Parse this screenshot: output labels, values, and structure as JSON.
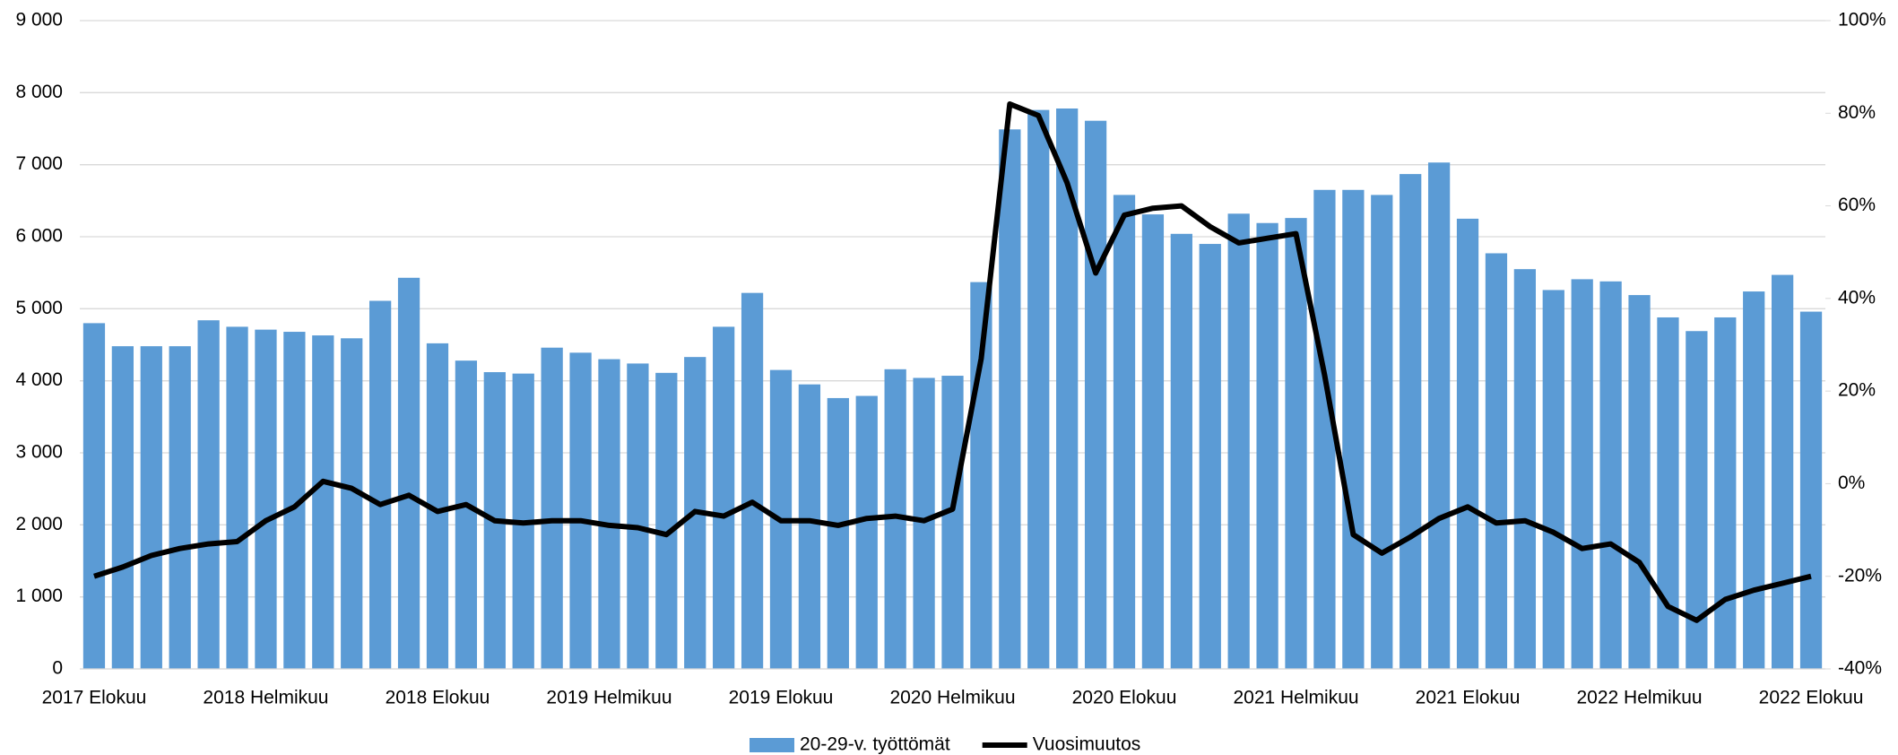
{
  "chart_data": {
    "type": "bar-line",
    "categories": [
      "2017 Elokuu",
      null,
      null,
      null,
      null,
      null,
      "2018 Helmikuu",
      null,
      null,
      null,
      null,
      null,
      "2018 Elokuu",
      null,
      null,
      null,
      null,
      null,
      "2019 Helmikuu",
      null,
      null,
      null,
      null,
      null,
      "2019 Elokuu",
      null,
      null,
      null,
      null,
      null,
      "2020 Helmikuu",
      null,
      null,
      null,
      null,
      null,
      "2020 Elokuu",
      null,
      null,
      null,
      null,
      null,
      "2021 Helmikuu",
      null,
      null,
      null,
      null,
      null,
      "2021 Elokuu",
      null,
      null,
      null,
      null,
      null,
      "2022 Helmikuu",
      null,
      null,
      null,
      null,
      null,
      "2022 Elokuu"
    ],
    "series": [
      {
        "name": "20-29-v. työttömät",
        "type": "bar",
        "color": "#5b9bd5",
        "values": [
          4800,
          4480,
          4480,
          4480,
          4840,
          4750,
          4710,
          4680,
          4630,
          4590,
          5110,
          5430,
          4520,
          4280,
          4120,
          4100,
          4460,
          4390,
          4300,
          4240,
          4110,
          4330,
          4750,
          5220,
          4150,
          3950,
          3760,
          3790,
          4160,
          4040,
          4070,
          5370,
          7490,
          7760,
          7780,
          7610,
          6580,
          6310,
          6040,
          5900,
          6320,
          6190,
          6260,
          6650,
          6650,
          6580,
          6870,
          7030,
          6250,
          5770,
          5550,
          5260,
          5410,
          5380,
          5190,
          4880,
          4690,
          4880,
          5240,
          5470,
          4960
        ]
      },
      {
        "name": "Vuosimuutos",
        "type": "line",
        "axis": "y2",
        "color": "#000000",
        "values": [
          -20,
          -18,
          -15.5,
          -14,
          -13,
          -12.5,
          -8,
          -5,
          0.5,
          -1,
          -4.5,
          -2.5,
          -6,
          -4.5,
          -8,
          -8.5,
          -8,
          -8,
          -9,
          -9.5,
          -11,
          -6,
          -7,
          -4,
          -8,
          -8,
          -9,
          -7.5,
          -7,
          -8,
          -5.5,
          27,
          82,
          79.5,
          65,
          45.5,
          58,
          59.5,
          60,
          55.5,
          52,
          53,
          54,
          23.5,
          -11,
          -15,
          -11.5,
          -7.5,
          -5,
          -8.5,
          -8,
          -10.5,
          -14,
          -13,
          -17,
          -26.5,
          -29.5,
          -25,
          -23,
          -21.5,
          -20
        ]
      }
    ],
    "ylim": [
      0,
      9000
    ],
    "yticks": [
      0,
      {
        "value": 1000,
        "label": "1 000"
      },
      {
        "value": 2000,
        "label": "2 000"
      },
      {
        "value": 3000,
        "label": "3 000"
      },
      {
        "value": 4000,
        "label": "4 000"
      },
      {
        "value": 5000,
        "label": "5 000"
      },
      {
        "value": 6000,
        "label": "6 000"
      },
      {
        "value": 7000,
        "label": "7 000"
      },
      {
        "value": 8000,
        "label": "8 000"
      },
      {
        "value": 9000,
        "label": "9 000"
      }
    ],
    "y2lim": [
      -40,
      100
    ],
    "y2ticks": [
      {
        "value": -40,
        "label": "-40%"
      },
      {
        "value": -20,
        "label": "-20%"
      },
      {
        "value": 0,
        "label": "0%"
      },
      {
        "value": 20,
        "label": "20%"
      },
      {
        "value": 40,
        "label": "40%"
      },
      {
        "value": 60,
        "label": "60%"
      },
      {
        "value": 80,
        "label": "80%"
      },
      {
        "value": 100,
        "label": "100%"
      }
    ],
    "grid": true,
    "legend": "bottom"
  }
}
